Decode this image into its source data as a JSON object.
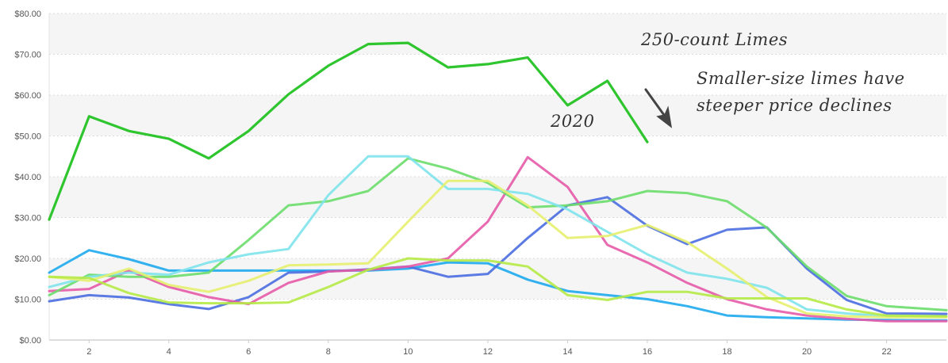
{
  "chart_data": {
    "type": "line",
    "title": "",
    "xlabel": "",
    "ylabel": "",
    "xlim": [
      1,
      23.5
    ],
    "ylim": [
      0,
      80
    ],
    "x_ticks": [
      2,
      4,
      6,
      8,
      10,
      12,
      14,
      16,
      18,
      20,
      22
    ],
    "x_tick_labels": [
      "2",
      "4",
      "6",
      "8",
      "10",
      "12",
      "14",
      "16",
      "18",
      "20",
      "22"
    ],
    "y_ticks": [
      0,
      10,
      20,
      30,
      40,
      50,
      60,
      70,
      80
    ],
    "y_tick_labels": [
      "$0.00",
      "$10.00",
      "$20.00",
      "$30.00",
      "$40.00",
      "$50.00",
      "$60.00",
      "$70.00",
      "$80.00"
    ],
    "grid": "horizontal bands, dotted lines",
    "annotations": [
      {
        "text": "250-count Limes"
      },
      {
        "text": "Smaller-size limes have"
      },
      {
        "text": "steeper price declines"
      },
      {
        "text": "2020"
      }
    ],
    "series": [
      {
        "color": "#2ec52e",
        "width": 3.2,
        "x": [
          1,
          2,
          3,
          4,
          5,
          6,
          7,
          8,
          9,
          10,
          11,
          12,
          13,
          14,
          15,
          16
        ],
        "y": [
          29.5,
          54.8,
          51.2,
          49.3,
          44.5,
          51.2,
          60.2,
          67.2,
          72.5,
          72.8,
          66.8,
          67.6,
          69.2,
          57.5,
          63.5,
          48.5
        ]
      },
      {
        "color": "#1eaaee",
        "width": 3,
        "x": [
          1,
          2,
          3,
          4,
          5,
          6,
          7,
          8,
          9,
          10,
          11,
          12,
          13,
          14,
          15,
          16,
          17,
          18,
          19,
          20,
          21,
          22,
          23.5
        ],
        "y": [
          16.5,
          22.0,
          19.8,
          17.0,
          17.0,
          17.0,
          17.0,
          17.0,
          17.0,
          17.5,
          19.0,
          18.8,
          14.8,
          12.0,
          11.0,
          10.0,
          8.3,
          6.0,
          5.6,
          5.3,
          5.0,
          4.9,
          4.8
        ]
      },
      {
        "color": "#4a6ee0",
        "width": 3,
        "x": [
          1,
          2,
          3,
          4,
          5,
          6,
          7,
          8,
          9,
          10,
          11,
          12,
          13,
          14,
          15,
          16,
          17,
          18,
          19,
          20,
          21,
          22,
          23.5
        ],
        "y": [
          9.5,
          11.0,
          10.4,
          8.8,
          7.6,
          10.5,
          16.5,
          16.8,
          17.3,
          18.0,
          15.5,
          16.2,
          25.0,
          33.0,
          35.0,
          28.0,
          23.5,
          27.0,
          27.6,
          17.5,
          9.8,
          6.5,
          6.4
        ]
      },
      {
        "color": "#e55aa8",
        "width": 3,
        "x": [
          1,
          2,
          3,
          4,
          5,
          6,
          7,
          8,
          9,
          10,
          11,
          12,
          13,
          14,
          15,
          16,
          17,
          18,
          19,
          20,
          21,
          22,
          23.5
        ],
        "y": [
          12.0,
          12.5,
          17.0,
          13.0,
          10.5,
          8.8,
          14.0,
          16.8,
          17.2,
          18.0,
          20.0,
          29.0,
          44.8,
          37.5,
          23.3,
          19.0,
          14.0,
          10.0,
          7.5,
          6.0,
          5.2,
          4.6,
          4.6
        ]
      },
      {
        "color": "#6cdd6c",
        "width": 3,
        "x": [
          1,
          2,
          3,
          4,
          5,
          6,
          7,
          8,
          9,
          10,
          11,
          12,
          13,
          14,
          15,
          16,
          17,
          18,
          19,
          20,
          21,
          22,
          23.5
        ],
        "y": [
          11.0,
          16.0,
          15.5,
          15.5,
          16.5,
          24.5,
          33.0,
          34.0,
          36.5,
          44.5,
          42.0,
          38.5,
          32.5,
          33.0,
          34.0,
          36.5,
          36.0,
          34.0,
          27.5,
          18.0,
          10.8,
          8.3,
          7.3
        ]
      },
      {
        "color": "#7fe3ec",
        "width": 3,
        "x": [
          1,
          2,
          3,
          4,
          5,
          6,
          7,
          8,
          9,
          10,
          11,
          12,
          13,
          14,
          15,
          16,
          17,
          18,
          19,
          20,
          21,
          22,
          23.5
        ],
        "y": [
          13.0,
          15.5,
          16.5,
          16.0,
          19.0,
          21.0,
          22.3,
          35.5,
          45.0,
          45.0,
          37.0,
          37.0,
          35.8,
          32.0,
          26.5,
          21.0,
          16.5,
          15.0,
          12.8,
          7.5,
          6.5,
          5.8,
          5.8
        ]
      },
      {
        "color": "#e6ef6e",
        "width": 3,
        "x": [
          1,
          2,
          3,
          4,
          5,
          6,
          7,
          8,
          9,
          10,
          11,
          12,
          13,
          14,
          15,
          16,
          17,
          18,
          19,
          20,
          21,
          22,
          23.5
        ],
        "y": [
          15.5,
          14.5,
          17.5,
          13.5,
          11.8,
          14.5,
          18.3,
          18.5,
          18.8,
          29.0,
          39.0,
          39.0,
          33.0,
          25.0,
          25.5,
          28.2,
          24.0,
          17.5,
          10.5,
          6.5,
          5.8,
          5.6,
          5.6
        ]
      },
      {
        "color": "#b5ea45",
        "width": 3,
        "x": [
          1,
          2,
          3,
          4,
          5,
          6,
          7,
          8,
          9,
          10,
          11,
          12,
          13,
          14,
          15,
          16,
          17,
          18,
          19,
          20,
          21,
          22,
          23.5
        ],
        "y": [
          15.5,
          15.2,
          11.5,
          9.2,
          9.0,
          9.0,
          9.2,
          13.0,
          17.2,
          20.0,
          19.5,
          19.5,
          18.0,
          11.0,
          9.8,
          11.8,
          11.8,
          10.2,
          10.2,
          10.2,
          7.5,
          6.0,
          5.8
        ]
      }
    ]
  }
}
